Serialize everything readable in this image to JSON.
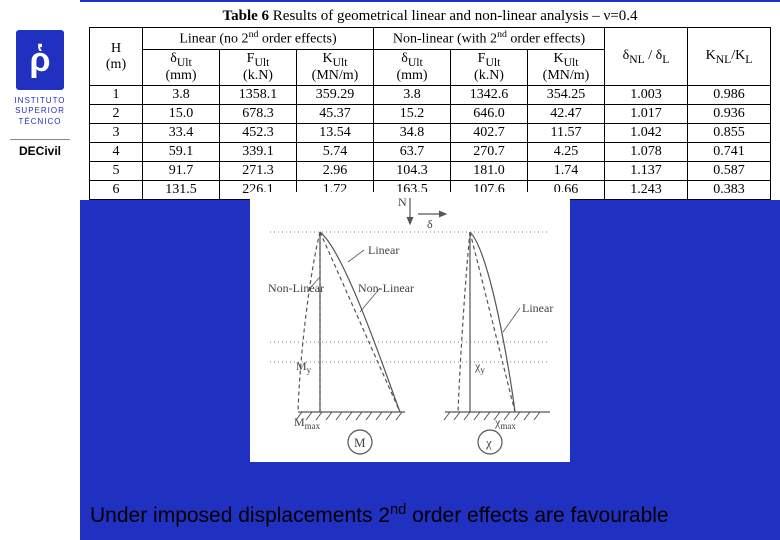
{
  "sidebar": {
    "logo_glyph": "ῥ",
    "inst_line1": "INSTITUTO",
    "inst_line2": "SUPERIOR",
    "inst_line3": "TÉCNICO",
    "department": "DECivil"
  },
  "table": {
    "title_prefix": "Table 6",
    "title_text": " Results of geometrical linear and non-linear analysis – ν=0.4",
    "group_linear_html": "Linear (no 2<sup>nd</sup> order effects)",
    "group_nonlinear_html": "Non-linear (with 2<sup>nd</sup> order effects)",
    "head": {
      "H": "H",
      "H_unit": "(m)",
      "d_ult": "δ",
      "d_ult_sub": "Ult",
      "d_unit": "(mm)",
      "F_ult": "F",
      "F_ult_sub": "Ult",
      "F_unit": "(k.N)",
      "K_ult": "K",
      "K_ult_sub": "Ult",
      "K_unit": "(MN/m)",
      "ratio_d": "δ",
      "ratio_d_nl": "NL",
      "ratio_d_l": "L",
      "ratio_k": "K",
      "ratio_k_nl": "NL",
      "ratio_k_l": "L"
    },
    "rows": [
      {
        "H": "1",
        "dL": "3.8",
        "FL": "1358.1",
        "KL": "359.29",
        "dN": "3.8",
        "FN": "1342.6",
        "KN": "354.25",
        "rD": "1.003",
        "rK": "0.986"
      },
      {
        "H": "2",
        "dL": "15.0",
        "FL": "678.3",
        "KL": "45.37",
        "dN": "15.2",
        "FN": "646.0",
        "KN": "42.47",
        "rD": "1.017",
        "rK": "0.936"
      },
      {
        "H": "3",
        "dL": "33.4",
        "FL": "452.3",
        "KL": "13.54",
        "dN": "34.8",
        "FN": "402.7",
        "KN": "11.57",
        "rD": "1.042",
        "rK": "0.855"
      },
      {
        "H": "4",
        "dL": "59.1",
        "FL": "339.1",
        "KL": "5.74",
        "dN": "63.7",
        "FN": "270.7",
        "KN": "4.25",
        "rD": "1.078",
        "rK": "0.741"
      },
      {
        "H": "5",
        "dL": "91.7",
        "FL": "271.3",
        "KL": "2.96",
        "dN": "104.3",
        "FN": "181.0",
        "KN": "1.74",
        "rD": "1.137",
        "rK": "0.587"
      },
      {
        "H": "6",
        "dL": "131.5",
        "FL": "226.1",
        "KL": "1.72",
        "dN": "163.5",
        "FN": "107.6",
        "KN": "0.66",
        "rD": "1.243",
        "rK": "0.383"
      }
    ]
  },
  "diagram": {
    "N": "N",
    "delta": "δ",
    "Linear": "Linear",
    "NonLinear": "Non-Linear",
    "My": "M",
    "My_sub": "y",
    "Mmax": "M",
    "Mmax_sub": "max",
    "chi_y": "χ",
    "chi_y_sub": "y",
    "chi_max": "χ",
    "chi_max_sub": "max",
    "M": "M",
    "chi": "χ",
    "colors": {
      "stroke": "#555",
      "text": "#444"
    }
  },
  "caption": {
    "text_before": "Under imposed displacements 2",
    "sup": "nd",
    "text_after": " order effects are favourable"
  }
}
